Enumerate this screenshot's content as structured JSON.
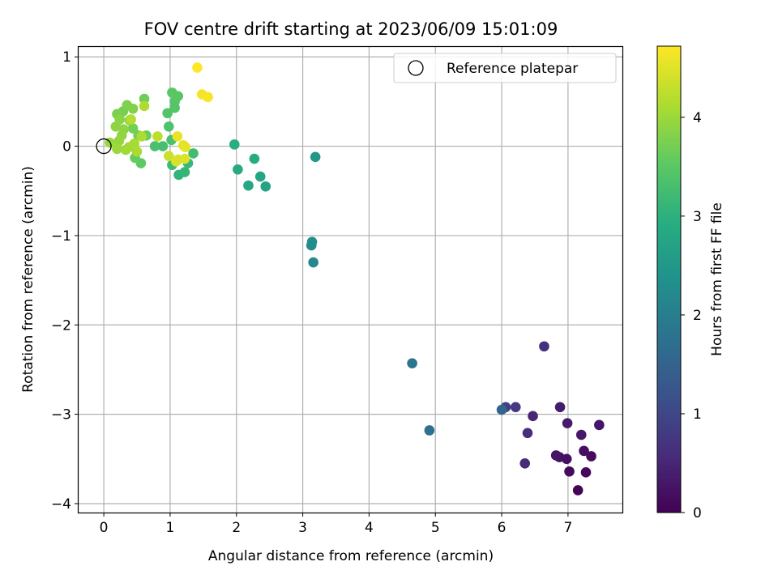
{
  "chart_data": {
    "type": "scatter",
    "title": "FOV centre drift starting at 2023/06/09 15:01:09",
    "xlabel": "Angular distance from reference (arcmin)",
    "ylabel": "Rotation from reference (arcmin)",
    "colorbar_label": "Hours from first FF file",
    "xlim": [
      -0.38,
      7.82
    ],
    "ylim": [
      -4.1,
      1.12
    ],
    "clim": [
      0,
      4.72
    ],
    "colormap": "viridis",
    "grid": true,
    "legend_position": "top-right",
    "x_ticks": [
      0,
      1,
      2,
      3,
      4,
      5,
      6,
      7
    ],
    "x_tick_labels": [
      "0",
      "1",
      "2",
      "3",
      "4",
      "5",
      "6",
      "7"
    ],
    "y_ticks": [
      -4,
      -3,
      -2,
      -1,
      0,
      1
    ],
    "y_tick_labels": [
      "−4",
      "−3",
      "−2",
      "−1",
      "0",
      "1"
    ],
    "colorbar_ticks": [
      0,
      1,
      2,
      3,
      4
    ],
    "colorbar_tick_labels": [
      "0",
      "1",
      "2",
      "3",
      "4"
    ],
    "reference": {
      "label": "Reference platepar",
      "x": 0,
      "y": 0
    },
    "points": [
      {
        "x": 7.15,
        "y": -3.85,
        "c": 0.05
      },
      {
        "x": 7.27,
        "y": -3.65,
        "c": 0.1
      },
      {
        "x": 7.02,
        "y": -3.64,
        "c": 0.12
      },
      {
        "x": 7.35,
        "y": -3.47,
        "c": 0.15
      },
      {
        "x": 7.24,
        "y": -3.41,
        "c": 0.18
      },
      {
        "x": 6.98,
        "y": -3.5,
        "c": 0.2
      },
      {
        "x": 6.87,
        "y": -3.48,
        "c": 0.22
      },
      {
        "x": 6.82,
        "y": -3.46,
        "c": 0.25
      },
      {
        "x": 7.47,
        "y": -3.12,
        "c": 0.28
      },
      {
        "x": 7.2,
        "y": -3.23,
        "c": 0.3
      },
      {
        "x": 6.99,
        "y": -3.1,
        "c": 0.33
      },
      {
        "x": 6.88,
        "y": -2.92,
        "c": 0.36
      },
      {
        "x": 6.47,
        "y": -3.02,
        "c": 0.5
      },
      {
        "x": 6.35,
        "y": -3.55,
        "c": 0.55
      },
      {
        "x": 6.39,
        "y": -3.21,
        "c": 0.6
      },
      {
        "x": 6.64,
        "y": -2.24,
        "c": 0.62
      },
      {
        "x": 6.21,
        "y": -2.92,
        "c": 0.8
      },
      {
        "x": 6.06,
        "y": -2.92,
        "c": 0.9
      },
      {
        "x": 6.0,
        "y": -2.95,
        "c": 1.55
      },
      {
        "x": 4.91,
        "y": -3.18,
        "c": 1.75
      },
      {
        "x": 4.65,
        "y": -2.43,
        "c": 1.85
      },
      {
        "x": 3.16,
        "y": -1.3,
        "c": 2.2
      },
      {
        "x": 3.13,
        "y": -1.11,
        "c": 2.25
      },
      {
        "x": 3.14,
        "y": -1.07,
        "c": 2.3
      },
      {
        "x": 3.19,
        "y": -0.12,
        "c": 2.5
      },
      {
        "x": 2.44,
        "y": -0.45,
        "c": 2.7
      },
      {
        "x": 2.36,
        "y": -0.34,
        "c": 2.75
      },
      {
        "x": 2.18,
        "y": -0.44,
        "c": 2.8
      },
      {
        "x": 2.02,
        "y": -0.26,
        "c": 2.85
      },
      {
        "x": 2.27,
        "y": -0.14,
        "c": 2.9
      },
      {
        "x": 1.97,
        "y": 0.02,
        "c": 2.95
      },
      {
        "x": 1.13,
        "y": -0.32,
        "c": 3.05
      },
      {
        "x": 1.22,
        "y": -0.29,
        "c": 3.1
      },
      {
        "x": 1.27,
        "y": -0.19,
        "c": 3.15
      },
      {
        "x": 1.03,
        "y": -0.21,
        "c": 3.2
      },
      {
        "x": 1.35,
        "y": -0.08,
        "c": 3.25
      },
      {
        "x": 0.89,
        "y": 0.0,
        "c": 3.3
      },
      {
        "x": 0.77,
        "y": 0.0,
        "c": 3.32
      },
      {
        "x": 1.02,
        "y": 0.07,
        "c": 3.35
      },
      {
        "x": 0.98,
        "y": 0.22,
        "c": 3.38
      },
      {
        "x": 0.96,
        "y": 0.37,
        "c": 3.4
      },
      {
        "x": 1.07,
        "y": 0.43,
        "c": 3.42
      },
      {
        "x": 1.07,
        "y": 0.5,
        "c": 3.45
      },
      {
        "x": 1.12,
        "y": 0.56,
        "c": 3.48
      },
      {
        "x": 1.03,
        "y": 0.6,
        "c": 3.5
      },
      {
        "x": 0.56,
        "y": -0.19,
        "c": 3.55
      },
      {
        "x": 0.47,
        "y": -0.13,
        "c": 3.6
      },
      {
        "x": 0.64,
        "y": 0.12,
        "c": 3.62
      },
      {
        "x": 0.61,
        "y": 0.53,
        "c": 3.65
      },
      {
        "x": 0.52,
        "y": 0.12,
        "c": 3.68
      },
      {
        "x": 0.44,
        "y": 0.2,
        "c": 3.7
      },
      {
        "x": 0.29,
        "y": 0.39,
        "c": 3.72
      },
      {
        "x": 0.2,
        "y": 0.36,
        "c": 3.75
      },
      {
        "x": 0.35,
        "y": 0.46,
        "c": 3.78
      },
      {
        "x": 0.44,
        "y": 0.42,
        "c": 3.8
      },
      {
        "x": 0.39,
        "y": 0.29,
        "c": 3.82
      },
      {
        "x": 0.24,
        "y": 0.3,
        "c": 3.85
      },
      {
        "x": 0.18,
        "y": 0.22,
        "c": 3.88
      },
      {
        "x": 0.3,
        "y": 0.19,
        "c": 3.9
      },
      {
        "x": 0.27,
        "y": 0.12,
        "c": 3.92
      },
      {
        "x": 0.23,
        "y": 0.06,
        "c": 3.95
      },
      {
        "x": 0.09,
        "y": 0.04,
        "c": 3.97
      },
      {
        "x": 0.2,
        "y": -0.03,
        "c": 4.0
      },
      {
        "x": 0.33,
        "y": -0.04,
        "c": 4.02
      },
      {
        "x": 0.38,
        "y": -0.01,
        "c": 4.05
      },
      {
        "x": 0.46,
        "y": 0.03,
        "c": 4.08
      },
      {
        "x": 0.5,
        "y": -0.06,
        "c": 4.1
      },
      {
        "x": 0.57,
        "y": 0.11,
        "c": 4.12
      },
      {
        "x": 0.61,
        "y": 0.45,
        "c": 4.15
      },
      {
        "x": 0.41,
        "y": 0.3,
        "c": 4.18
      },
      {
        "x": 0.81,
        "y": 0.11,
        "c": 4.25
      },
      {
        "x": 0.98,
        "y": -0.11,
        "c": 4.35
      },
      {
        "x": 1.12,
        "y": -0.15,
        "c": 4.4
      },
      {
        "x": 1.09,
        "y": -0.17,
        "c": 4.45
      },
      {
        "x": 1.22,
        "y": -0.14,
        "c": 4.48
      },
      {
        "x": 1.2,
        "y": 0.01,
        "c": 4.52
      },
      {
        "x": 1.23,
        "y": -0.01,
        "c": 4.55
      },
      {
        "x": 1.11,
        "y": 0.11,
        "c": 4.58
      },
      {
        "x": 1.48,
        "y": 0.58,
        "c": 4.65
      },
      {
        "x": 1.57,
        "y": 0.55,
        "c": 4.68
      },
      {
        "x": 1.41,
        "y": 0.88,
        "c": 4.72
      }
    ]
  }
}
